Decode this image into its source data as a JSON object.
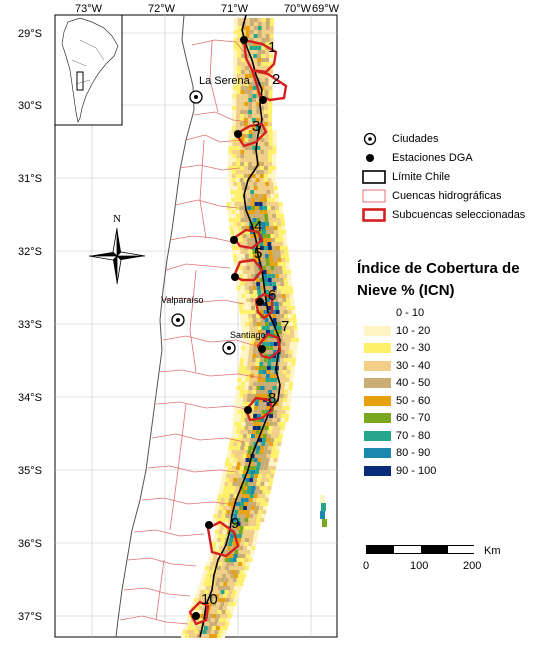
{
  "map": {
    "lon_labels": [
      "73°W",
      "72°W",
      "71°W",
      "70°W",
      "69°W"
    ],
    "lat_labels": [
      "29°S",
      "30°S",
      "31°S",
      "32°S",
      "33°S",
      "34°S",
      "35°S",
      "36°S",
      "37°S"
    ],
    "cities": [
      {
        "name": "La Serena",
        "labeled": true
      },
      {
        "name": "Valparaíso",
        "labeled": true
      },
      {
        "name": "Santiago",
        "labeled": true
      }
    ],
    "subbasin_numbers": [
      "1",
      "2",
      "3",
      "4",
      "5",
      "6",
      "7",
      "8",
      "9",
      "10"
    ],
    "colors": {
      "chile_border": "#000000",
      "basins": "#e07070",
      "subbasins": "#d42020",
      "graticule": "#c8c8c8"
    }
  },
  "legend": {
    "items": [
      {
        "label": "Ciudades",
        "icon": "city-icon"
      },
      {
        "label": "Estaciones DGA",
        "icon": "station-dot-icon"
      },
      {
        "label": "Límite Chile",
        "icon": "black-outline-box"
      },
      {
        "label": "Cuencas hidrográficas",
        "icon": "thin-red-box"
      },
      {
        "label": "Subcuencas seleccionadas",
        "icon": "thick-red-box"
      }
    ]
  },
  "icn_legend": {
    "title": "Índice de Cobertura de Nieve % (ICN)",
    "classes": [
      {
        "label": "0 - 10",
        "color": "#ffffff"
      },
      {
        "label": "10 - 20",
        "color": "#fff5c4"
      },
      {
        "label": "20 - 30",
        "color": "#fff06a"
      },
      {
        "label": "30 - 40",
        "color": "#f2cf86"
      },
      {
        "label": "40 - 50",
        "color": "#c9ad74"
      },
      {
        "label": "50 - 60",
        "color": "#e6a010"
      },
      {
        "label": "60 - 70",
        "color": "#7aa720"
      },
      {
        "label": "70 - 80",
        "color": "#26a68a"
      },
      {
        "label": "80 - 90",
        "color": "#1c88ad"
      },
      {
        "label": "90 - 100",
        "color": "#0a2a7a"
      }
    ]
  },
  "scale": {
    "unit": "Km",
    "ticks": [
      "0",
      "100",
      "200"
    ]
  }
}
